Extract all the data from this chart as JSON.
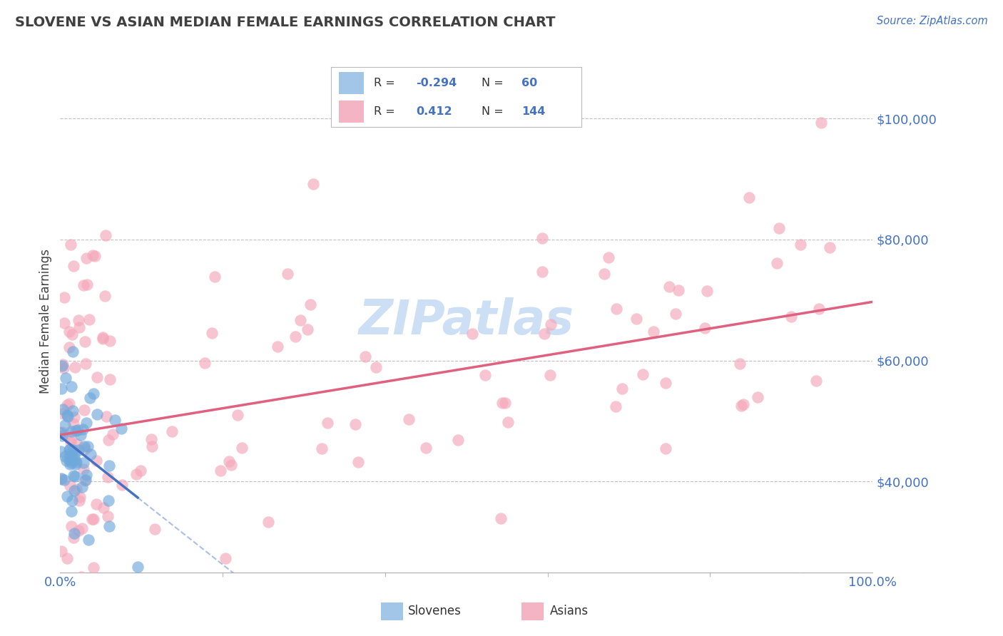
{
  "title": "SLOVENE VS ASIAN MEDIAN FEMALE EARNINGS CORRELATION CHART",
  "source": "Source: ZipAtlas.com",
  "ylabel_label": "Median Female Earnings",
  "x_min": 0.0,
  "x_max": 1.0,
  "y_min": 25000,
  "y_max": 108000,
  "y_ticks": [
    40000,
    60000,
    80000,
    100000
  ],
  "y_tick_labels": [
    "$40,000",
    "$60,000",
    "$80,000",
    "$100,000"
  ],
  "x_tick_labels": [
    "0.0%",
    "100.0%"
  ],
  "slovene_color": "#6fa8dc",
  "asian_color": "#f4a7b9",
  "asian_line_color": "#e06080",
  "slovene_line_color": "#4472c4",
  "background_color": "#ffffff",
  "grid_color": "#c0c0c0",
  "title_color": "#404040",
  "axis_label_color": "#404040",
  "tick_color": "#4472c4",
  "watermark_color": "#ccdff5",
  "slovene_R": -0.294,
  "slovene_N": 60,
  "asian_R": 0.412,
  "asian_N": 144
}
